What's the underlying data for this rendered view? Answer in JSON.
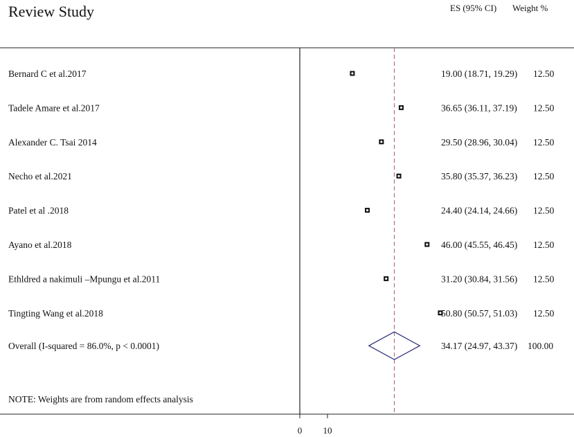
{
  "chart_data": {
    "type": "forest",
    "title": "Review Study",
    "column_headers": {
      "es": "ES (95% CI)",
      "weight": "Weight %"
    },
    "studies": [
      {
        "label": "Bernard C et al.2017",
        "es": 19.0,
        "lo": 18.71,
        "hi": 19.29,
        "ci_text": "19.00 (18.71, 19.29)",
        "weight": "12.50"
      },
      {
        "label": "Tadele Amare et al.2017",
        "es": 36.65,
        "lo": 36.11,
        "hi": 37.19,
        "ci_text": "36.65 (36.11, 37.19)",
        "weight": "12.50"
      },
      {
        "label": "Alexander C. Tsai 2014",
        "es": 29.5,
        "lo": 28.96,
        "hi": 30.04,
        "ci_text": "29.50 (28.96, 30.04)",
        "weight": "12.50"
      },
      {
        "label": "Necho et al.2021",
        "es": 35.8,
        "lo": 35.37,
        "hi": 36.23,
        "ci_text": "35.80 (35.37, 36.23)",
        "weight": "12.50"
      },
      {
        "label": "Patel et al .2018",
        "es": 24.4,
        "lo": 24.14,
        "hi": 24.66,
        "ci_text": "24.40 (24.14, 24.66)",
        "weight": "12.50"
      },
      {
        "label": "Ayano et al.2018",
        "es": 46.0,
        "lo": 45.55,
        "hi": 46.45,
        "ci_text": "46.00 (45.55, 46.45)",
        "weight": "12.50"
      },
      {
        "label": "Ethldred a nakimuli –Mpungu et al.2011",
        "es": 31.2,
        "lo": 30.84,
        "hi": 31.56,
        "ci_text": "31.20 (30.84, 31.56)",
        "weight": "12.50"
      },
      {
        "label": "Tingting Wang et al.2018",
        "es": 50.8,
        "lo": 50.57,
        "hi": 51.03,
        "ci_text": "50.80 (50.57, 51.03)",
        "weight": "12.50"
      }
    ],
    "overall": {
      "label": "Overall  (I-squared = 86.0%, p < 0.0001)",
      "es": 34.17,
      "lo": 24.97,
      "hi": 43.37,
      "ci_text": "34.17 (24.97, 43.37)",
      "weight": "100.00"
    },
    "note": "NOTE: Weights are from random effects analysis",
    "x_ticks": [
      {
        "value": 0,
        "label": "0"
      },
      {
        "value": 10,
        "label": "10"
      }
    ],
    "null_line": 0,
    "overall_line": 34.17,
    "colors": {
      "text": "#111111",
      "axis": "#222222",
      "overall_line": "#b0707c",
      "diamond": "#2a2a7a",
      "marker": "#111111"
    }
  }
}
